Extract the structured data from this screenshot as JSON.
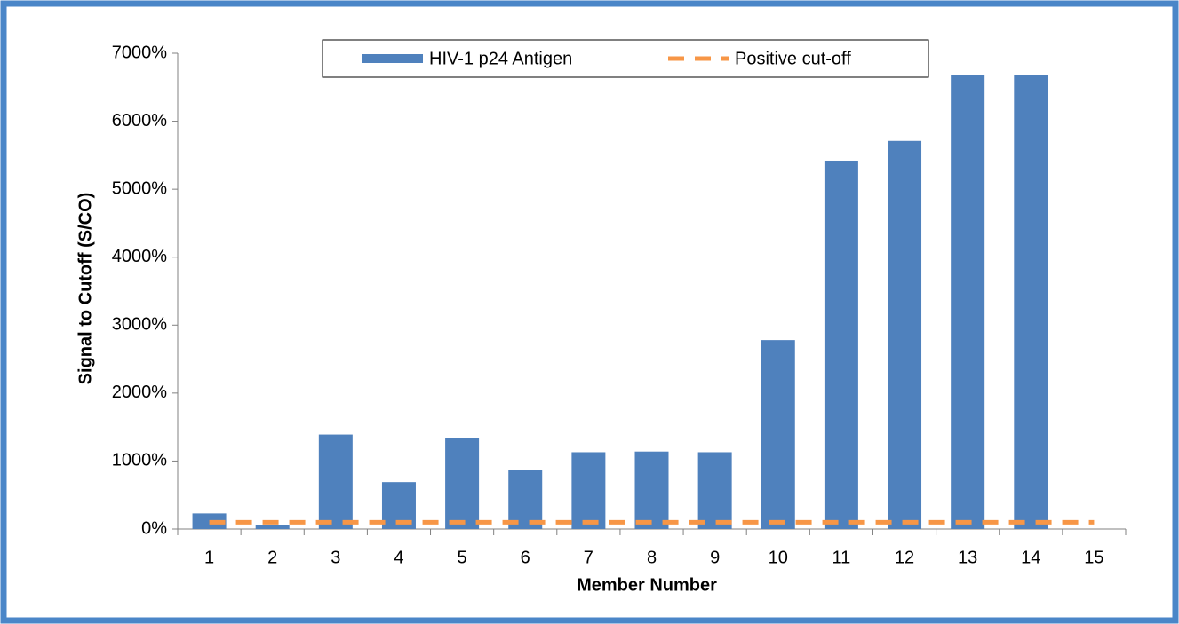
{
  "chart_data": {
    "type": "bar",
    "x_label": "Member Number",
    "y_label": "Signal to Cutoff (S/CO)",
    "categories": [
      "1",
      "2",
      "3",
      "4",
      "5",
      "6",
      "7",
      "8",
      "9",
      "10",
      "11",
      "12",
      "13",
      "14",
      "15"
    ],
    "series": [
      {
        "name": "HIV-1 p24 Antigen",
        "color": "#4f81bd",
        "type": "bar",
        "values": [
          230,
          60,
          1390,
          690,
          1340,
          870,
          1130,
          1140,
          1130,
          2780,
          5420,
          5710,
          6680,
          6680,
          null
        ]
      },
      {
        "name": "Positive cut-off",
        "color": "#f79646",
        "type": "line",
        "dashed": true,
        "values": [
          100,
          100,
          100,
          100,
          100,
          100,
          100,
          100,
          100,
          100,
          100,
          100,
          100,
          100,
          100
        ]
      }
    ],
    "ylim": [
      0,
      7000
    ],
    "yticks": [
      {
        "value": 0,
        "label": "0%"
      },
      {
        "value": 1000,
        "label": "1000%"
      },
      {
        "value": 2000,
        "label": "2000%"
      },
      {
        "value": 3000,
        "label": "3000%"
      },
      {
        "value": 4000,
        "label": "4000%"
      },
      {
        "value": 5000,
        "label": "5000%"
      },
      {
        "value": 6000,
        "label": "6000%"
      },
      {
        "value": 7000,
        "label": "7000%"
      }
    ],
    "legend": "top",
    "grid": false
  }
}
